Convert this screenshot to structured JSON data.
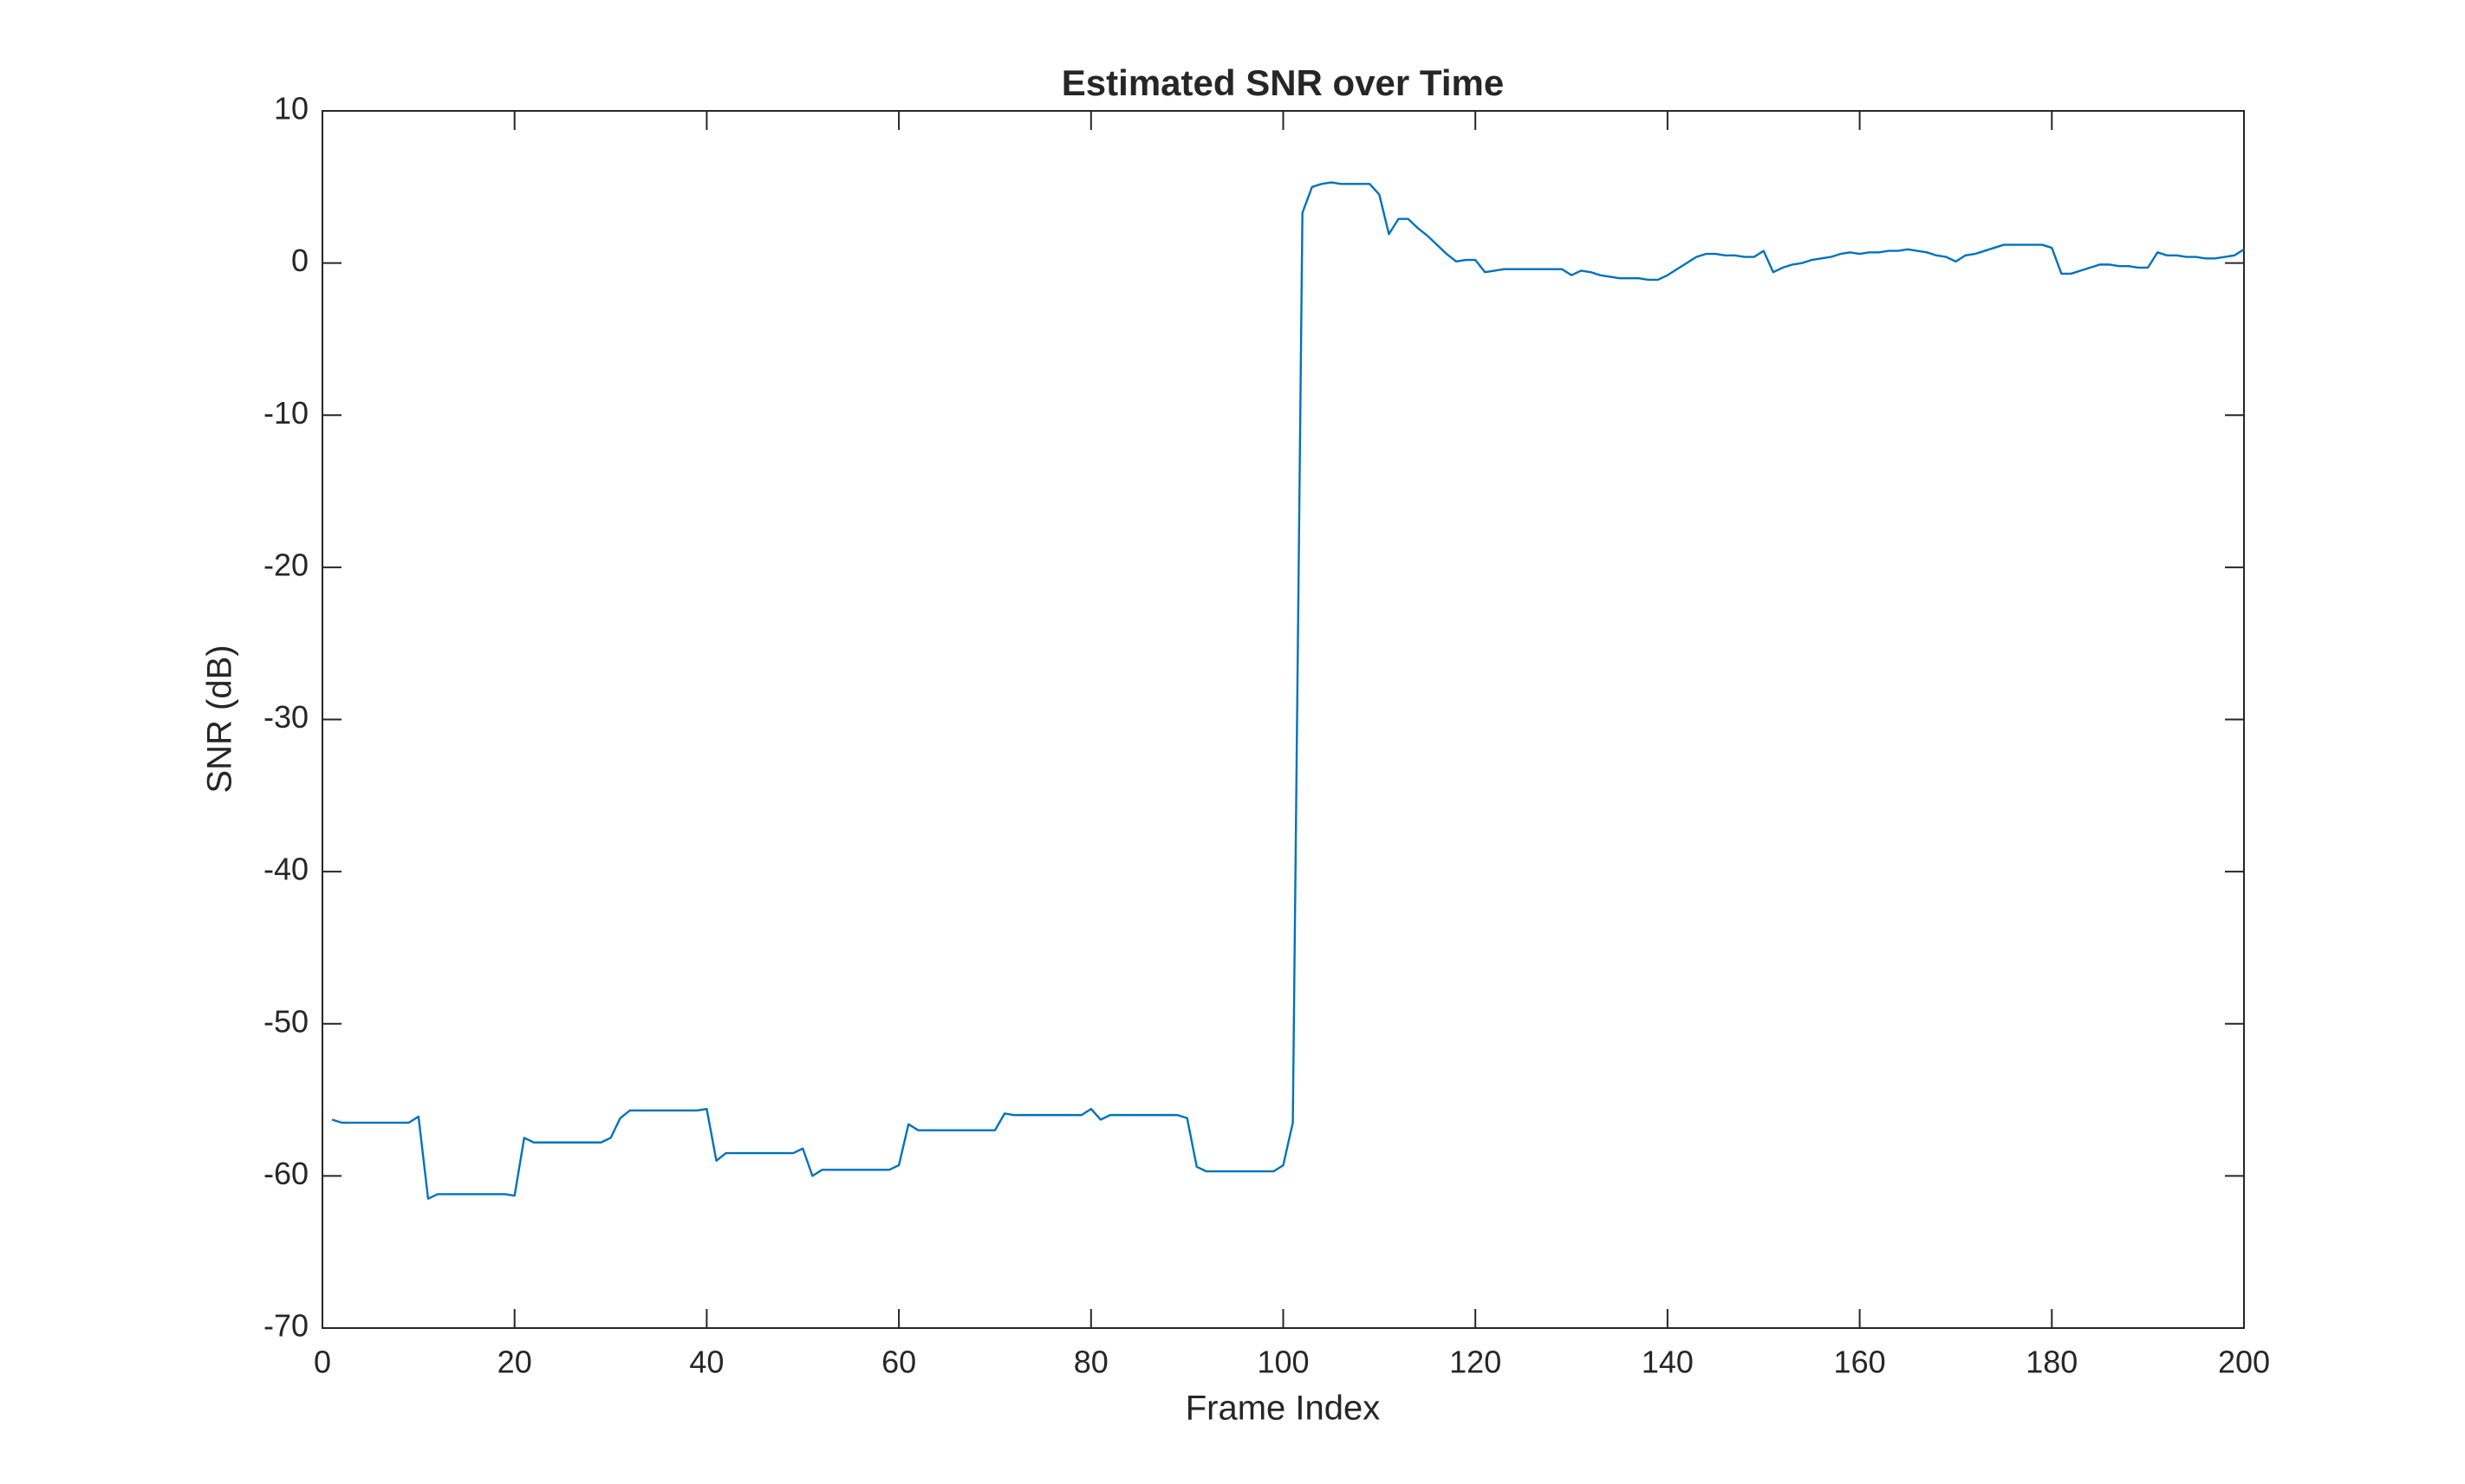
{
  "chart_data": {
    "type": "line",
    "title": "Estimated SNR over Time",
    "x_label": "Frame Index",
    "y_label": "SNR (dB)",
    "x": [
      1,
      2,
      3,
      4,
      5,
      6,
      7,
      8,
      9,
      10,
      11,
      12,
      13,
      14,
      15,
      16,
      17,
      18,
      19,
      20,
      21,
      22,
      23,
      24,
      25,
      26,
      27,
      28,
      29,
      30,
      31,
      32,
      33,
      34,
      35,
      36,
      37,
      38,
      39,
      40,
      41,
      42,
      43,
      44,
      45,
      46,
      47,
      48,
      49,
      50,
      51,
      52,
      53,
      54,
      55,
      56,
      57,
      58,
      59,
      60,
      61,
      62,
      63,
      64,
      65,
      66,
      67,
      68,
      69,
      70,
      71,
      72,
      73,
      74,
      75,
      76,
      77,
      78,
      79,
      80,
      81,
      82,
      83,
      84,
      85,
      86,
      87,
      88,
      89,
      90,
      91,
      92,
      93,
      94,
      95,
      96,
      97,
      98,
      99,
      100,
      101,
      102,
      103,
      104,
      105,
      106,
      107,
      108,
      109,
      110,
      111,
      112,
      113,
      114,
      115,
      116,
      117,
      118,
      119,
      120,
      121,
      122,
      123,
      124,
      125,
      126,
      127,
      128,
      129,
      130,
      131,
      132,
      133,
      134,
      135,
      136,
      137,
      138,
      139,
      140,
      141,
      142,
      143,
      144,
      145,
      146,
      147,
      148,
      149,
      150,
      151,
      152,
      153,
      154,
      155,
      156,
      157,
      158,
      159,
      160,
      161,
      162,
      163,
      164,
      165,
      166,
      167,
      168,
      169,
      170,
      171,
      172,
      173,
      174,
      175,
      176,
      177,
      178,
      179,
      180,
      181,
      182,
      183,
      184,
      185,
      186,
      187,
      188,
      189,
      190,
      191,
      192,
      193,
      194,
      195,
      196,
      197,
      198,
      199,
      200
    ],
    "series": [
      {
        "name": "SNR",
        "color": "#0072bd",
        "values": [
          -56.3,
          -56.5,
          -56.5,
          -56.5,
          -56.5,
          -56.5,
          -56.5,
          -56.5,
          -56.5,
          -56.1,
          -61.5,
          -61.2,
          -61.2,
          -61.2,
          -61.2,
          -61.2,
          -61.2,
          -61.2,
          -61.2,
          -61.3,
          -57.5,
          -57.8,
          -57.8,
          -57.8,
          -57.8,
          -57.8,
          -57.8,
          -57.8,
          -57.8,
          -57.5,
          -56.2,
          -55.7,
          -55.7,
          -55.7,
          -55.7,
          -55.7,
          -55.7,
          -55.7,
          -55.7,
          -55.6,
          -59.0,
          -58.5,
          -58.5,
          -58.5,
          -58.5,
          -58.5,
          -58.5,
          -58.5,
          -58.5,
          -58.2,
          -60.0,
          -59.6,
          -59.6,
          -59.6,
          -59.6,
          -59.6,
          -59.6,
          -59.6,
          -59.6,
          -59.3,
          -56.6,
          -57.0,
          -57.0,
          -57.0,
          -57.0,
          -57.0,
          -57.0,
          -57.0,
          -57.0,
          -57.0,
          -55.9,
          -56.0,
          -56.0,
          -56.0,
          -56.0,
          -56.0,
          -56.0,
          -56.0,
          -56.0,
          -55.6,
          -56.3,
          -56.0,
          -56.0,
          -56.0,
          -56.0,
          -56.0,
          -56.0,
          -56.0,
          -56.0,
          -56.2,
          -59.4,
          -59.7,
          -59.7,
          -59.7,
          -59.7,
          -59.7,
          -59.7,
          -59.7,
          -59.7,
          -59.3,
          -56.5,
          3.3,
          5.0,
          5.2,
          5.3,
          5.2,
          5.2,
          5.2,
          5.2,
          4.5,
          1.9,
          2.9,
          2.9,
          2.3,
          1.8,
          1.2,
          0.6,
          0.1,
          0.2,
          0.2,
          -0.6,
          -0.5,
          -0.4,
          -0.4,
          -0.4,
          -0.4,
          -0.4,
          -0.4,
          -0.4,
          -0.8,
          -0.5,
          -0.6,
          -0.8,
          -0.9,
          -1.0,
          -1.0,
          -1.0,
          -1.1,
          -1.1,
          -0.8,
          -0.4,
          0.0,
          0.4,
          0.6,
          0.6,
          0.5,
          0.5,
          0.4,
          0.4,
          0.8,
          -0.6,
          -0.3,
          -0.1,
          0.0,
          0.2,
          0.3,
          0.4,
          0.6,
          0.7,
          0.6,
          0.7,
          0.7,
          0.8,
          0.8,
          0.9,
          0.8,
          0.7,
          0.5,
          0.4,
          0.1,
          0.5,
          0.6,
          0.8,
          1.0,
          1.2,
          1.2,
          1.2,
          1.2,
          1.2,
          1.0,
          -0.7,
          -0.7,
          -0.5,
          -0.3,
          -0.1,
          -0.1,
          -0.2,
          -0.2,
          -0.3,
          -0.3,
          0.7,
          0.5,
          0.5,
          0.4,
          0.4,
          0.3,
          0.3,
          0.4,
          0.5,
          0.9
        ]
      }
    ],
    "xlim": [
      0,
      200
    ],
    "xticks": [
      0,
      20,
      40,
      60,
      80,
      100,
      120,
      140,
      160,
      180,
      200
    ],
    "ylim": [
      -70,
      10
    ],
    "yticks": [
      -70,
      -60,
      -50,
      -40,
      -30,
      -20,
      -10,
      0,
      10
    ],
    "grid": false
  }
}
